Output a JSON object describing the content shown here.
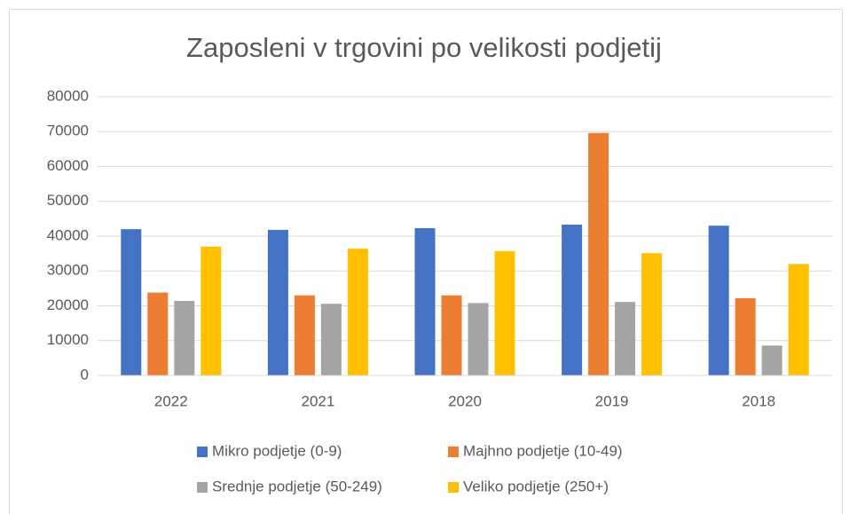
{
  "chart_data": {
    "type": "bar",
    "title": "Zaposleni v trgovini po velikosti podjetij",
    "categories": [
      "2022",
      "2021",
      "2020",
      "2019",
      "2018"
    ],
    "series": [
      {
        "name": "Mikro podjetje (0-9)",
        "color": "#4472c4",
        "values": [
          42000,
          41800,
          42300,
          43300,
          43000
        ]
      },
      {
        "name": "Majhno podjetje (10-49)",
        "color": "#ed7d31",
        "values": [
          23800,
          23000,
          23000,
          69600,
          22200
        ]
      },
      {
        "name": "Srednje podjetje (50-249)",
        "color": "#a5a5a5",
        "values": [
          21400,
          20600,
          20800,
          21100,
          8600
        ]
      },
      {
        "name": "Veliko podjetje (250+)",
        "color": "#ffc000",
        "values": [
          37000,
          36400,
          35700,
          35100,
          32000
        ]
      }
    ],
    "ylim": [
      0,
      80000
    ],
    "yticks": [
      0,
      10000,
      20000,
      30000,
      40000,
      50000,
      60000,
      70000,
      80000
    ],
    "grid": true,
    "legend": "bottom"
  }
}
